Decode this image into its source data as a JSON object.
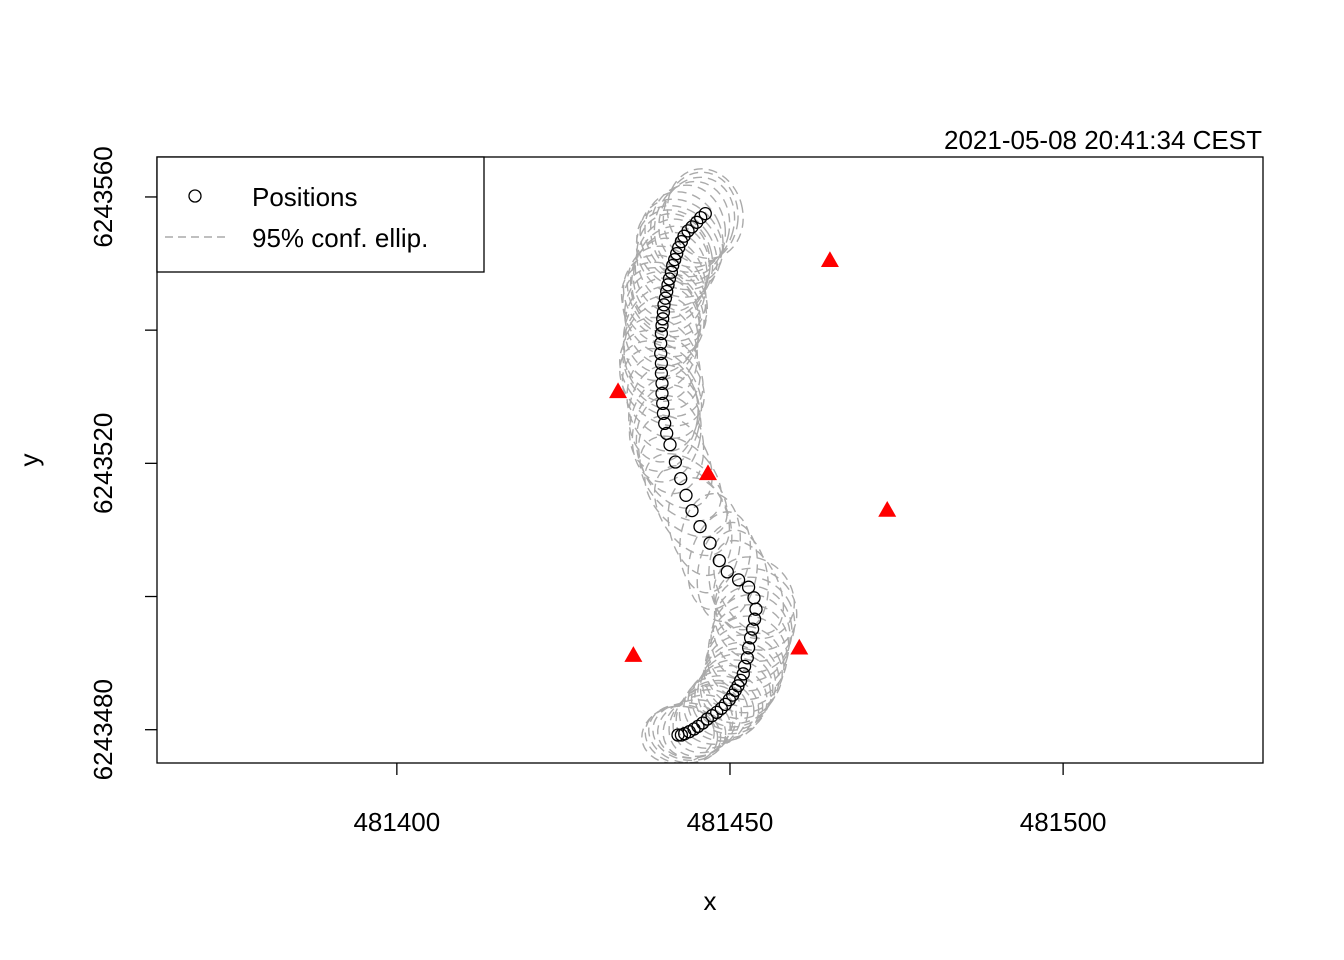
{
  "chart_data": {
    "type": "scatter",
    "title": "2021-05-08 20:41:34 CEST",
    "xlabel": "x",
    "ylabel": "y",
    "xlim": [
      481364,
      481530
    ],
    "ylim": [
      6243475,
      6243566
    ],
    "xticks": [
      481400,
      481450,
      481500
    ],
    "yticks": [
      6243480,
      6243500,
      6243520,
      6243540,
      6243560
    ],
    "ytick_labels": [
      "6243480",
      "",
      "6243520",
      "",
      "6243560"
    ],
    "legend": {
      "placement": "top-left",
      "entries": [
        "Positions",
        "95% conf. ellip."
      ]
    },
    "colors": {
      "positions": "#000000",
      "ellipses": "#aaaaaa",
      "receivers": "#ff0000"
    },
    "receivers": [
      [
        481465.0,
        6243550.5
      ],
      [
        481433.2,
        6243530.8
      ],
      [
        481446.7,
        6243518.5
      ],
      [
        481473.6,
        6243513.0
      ],
      [
        481435.5,
        6243491.2
      ],
      [
        481460.4,
        6243492.3
      ]
    ],
    "positions": [
      [
        481446.3,
        6243557.5
      ],
      [
        481445.6,
        6243556.9
      ],
      [
        481445.0,
        6243556.2
      ],
      [
        481444.3,
        6243555.5
      ],
      [
        481443.7,
        6243554.9
      ],
      [
        481443.1,
        6243554.1
      ],
      [
        481442.7,
        6243553.3
      ],
      [
        481442.3,
        6243552.4
      ],
      [
        481442.0,
        6243551.5
      ],
      [
        481441.7,
        6243550.6
      ],
      [
        481441.4,
        6243549.7
      ],
      [
        481441.2,
        6243548.7
      ],
      [
        481440.9,
        6243547.7
      ],
      [
        481440.7,
        6243546.8
      ],
      [
        481440.5,
        6243545.8
      ],
      [
        481440.3,
        6243544.8
      ],
      [
        481440.1,
        6243543.8
      ],
      [
        481440.0,
        6243542.7
      ],
      [
        481439.9,
        6243541.7
      ],
      [
        481439.8,
        6243540.7
      ],
      [
        481439.7,
        6243539.5
      ],
      [
        481439.6,
        6243538.0
      ],
      [
        481439.6,
        6243536.5
      ],
      [
        481439.7,
        6243535.0
      ],
      [
        481439.7,
        6243533.5
      ],
      [
        481439.8,
        6243532.0
      ],
      [
        481439.8,
        6243530.5
      ],
      [
        481439.9,
        6243529.0
      ],
      [
        481440.0,
        6243527.5
      ],
      [
        481440.2,
        6243526.0
      ],
      [
        481440.5,
        6243524.5
      ],
      [
        481441.0,
        6243522.8
      ],
      [
        481441.8,
        6243520.2
      ],
      [
        481442.6,
        6243517.7
      ],
      [
        481443.4,
        6243515.2
      ],
      [
        481444.3,
        6243512.9
      ],
      [
        481445.5,
        6243510.5
      ],
      [
        481447.0,
        6243508.0
      ],
      [
        481448.4,
        6243505.4
      ],
      [
        481449.6,
        6243503.7
      ],
      [
        481451.3,
        6243502.5
      ],
      [
        481452.8,
        6243501.4
      ],
      [
        481453.6,
        6243499.8
      ],
      [
        481453.9,
        6243498.1
      ],
      [
        481453.7,
        6243496.6
      ],
      [
        481453.4,
        6243495.1
      ],
      [
        481453.1,
        6243493.8
      ],
      [
        481452.8,
        6243492.3
      ],
      [
        481452.6,
        6243490.8
      ],
      [
        481452.2,
        6243489.5
      ],
      [
        481452.0,
        6243488.4
      ],
      [
        481451.6,
        6243487.4
      ],
      [
        481451.2,
        6243486.6
      ],
      [
        481450.8,
        6243485.9
      ],
      [
        481450.4,
        6243485.2
      ],
      [
        481449.9,
        6243484.5
      ],
      [
        481449.3,
        6243483.8
      ],
      [
        481448.7,
        6243483.2
      ],
      [
        481448.0,
        6243482.6
      ],
      [
        481447.3,
        6243482.1
      ],
      [
        481446.6,
        6243481.6
      ],
      [
        481445.9,
        6243481.0
      ],
      [
        481445.2,
        6243480.5
      ],
      [
        481444.6,
        6243480.1
      ],
      [
        481443.9,
        6243479.7
      ],
      [
        481443.2,
        6243479.4
      ],
      [
        481442.7,
        6243479.2
      ],
      [
        481442.2,
        6243479.2
      ]
    ]
  }
}
